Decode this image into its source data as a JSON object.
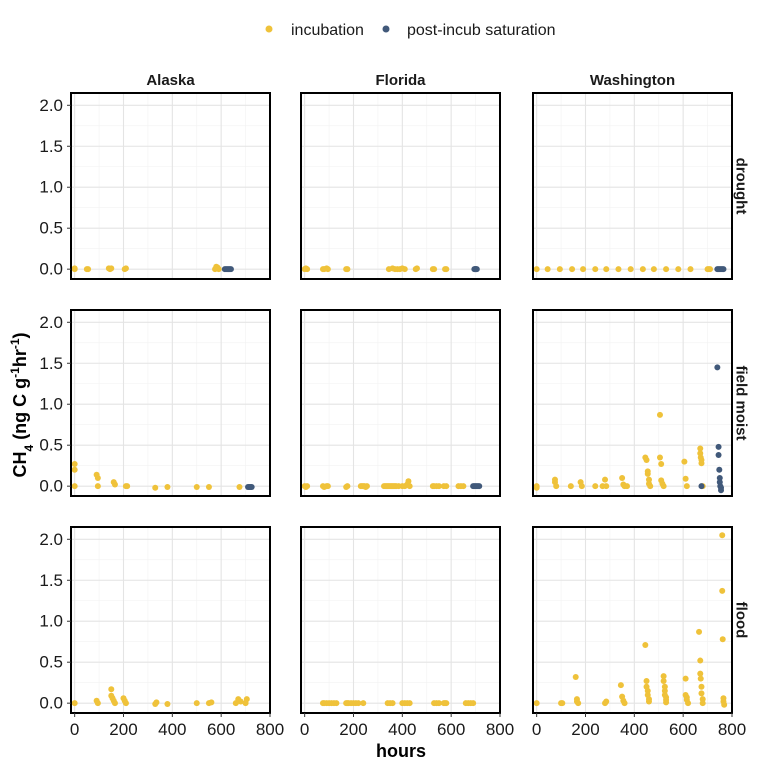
{
  "chart_data": {
    "type": "scatter",
    "xlabel": "hours",
    "ylabel": "CH4 (ng C g-1 hr-1)",
    "xlim": [
      -15,
      800
    ],
    "ylim": [
      -0.12,
      2.15
    ],
    "x_ticks": [
      0,
      200,
      400,
      600,
      800
    ],
    "x_tick_labels": [
      "0",
      "200",
      "400",
      "600",
      "800"
    ],
    "y_ticks": [
      0.0,
      0.5,
      1.0,
      1.5,
      2.0
    ],
    "y_tick_labels": [
      "0.0",
      "0.5",
      "1.0",
      "1.5",
      "2.0"
    ],
    "grid": true,
    "legend_position": "top",
    "columns": [
      "Alaska",
      "Florida",
      "Washington"
    ],
    "rows": [
      "drought",
      "field moist",
      "flood"
    ],
    "series": [
      {
        "name": "incubation",
        "color": "#EFC23A"
      },
      {
        "name": "post-incub saturation",
        "color": "#41597A"
      }
    ],
    "panels": [
      {
        "column": "Alaska",
        "row": "drought",
        "incubation": [
          [
            0,
            0.0
          ],
          [
            0,
            0.01
          ],
          [
            50,
            0.0
          ],
          [
            55,
            0.0
          ],
          [
            140,
            0.01
          ],
          [
            145,
            0.0
          ],
          [
            150,
            0.01
          ],
          [
            205,
            0.0
          ],
          [
            210,
            0.01
          ],
          [
            575,
            0.0
          ],
          [
            580,
            0.03
          ],
          [
            585,
            0.02
          ],
          [
            590,
            0.0
          ]
        ],
        "post_incub_saturation": [
          [
            615,
            0.0
          ],
          [
            620,
            0.0
          ],
          [
            625,
            0.0
          ],
          [
            630,
            0.0
          ],
          [
            635,
            0.0
          ],
          [
            640,
            0.0
          ]
        ]
      },
      {
        "column": "Florida",
        "row": "drought",
        "incubation": [
          [
            0,
            0.0
          ],
          [
            5,
            0.01
          ],
          [
            10,
            0.0
          ],
          [
            75,
            0.0
          ],
          [
            80,
            0.0
          ],
          [
            90,
            0.01
          ],
          [
            95,
            0.0
          ],
          [
            170,
            0.0
          ],
          [
            175,
            0.0
          ],
          [
            345,
            0.0
          ],
          [
            360,
            0.01
          ],
          [
            370,
            0.0
          ],
          [
            380,
            0.0
          ],
          [
            390,
            0.0
          ],
          [
            400,
            0.01
          ],
          [
            410,
            0.0
          ],
          [
            455,
            0.0
          ],
          [
            460,
            0.01
          ],
          [
            525,
            0.0
          ],
          [
            530,
            0.0
          ],
          [
            575,
            0.0
          ],
          [
            580,
            0.0
          ]
        ],
        "post_incub_saturation": [
          [
            695,
            0.0
          ],
          [
            698,
            0.0
          ],
          [
            700,
            0.0
          ],
          [
            702,
            0.0
          ],
          [
            705,
            0.0
          ]
        ]
      },
      {
        "column": "Washington",
        "row": "drought",
        "incubation": [
          [
            0,
            0.0
          ],
          [
            45,
            0.0
          ],
          [
            95,
            0.0
          ],
          [
            145,
            0.0
          ],
          [
            190,
            0.0
          ],
          [
            240,
            0.0
          ],
          [
            285,
            0.0
          ],
          [
            335,
            0.0
          ],
          [
            385,
            0.0
          ],
          [
            435,
            0.0
          ],
          [
            480,
            0.0
          ],
          [
            530,
            0.0
          ],
          [
            580,
            0.0
          ],
          [
            630,
            0.0
          ],
          [
            700,
            0.0
          ],
          [
            705,
            0.0
          ],
          [
            710,
            0.0
          ]
        ],
        "post_incub_saturation": [
          [
            740,
            0.0
          ],
          [
            745,
            0.0
          ],
          [
            750,
            0.0
          ],
          [
            755,
            0.0
          ],
          [
            760,
            0.0
          ],
          [
            765,
            0.0
          ]
        ]
      },
      {
        "column": "Alaska",
        "row": "field moist",
        "incubation": [
          [
            0,
            0.27
          ],
          [
            0,
            0.2
          ],
          [
            0,
            0.0
          ],
          [
            90,
            0.14
          ],
          [
            95,
            0.1
          ],
          [
            95,
            0.0
          ],
          [
            160,
            0.05
          ],
          [
            165,
            0.02
          ],
          [
            210,
            0.0
          ],
          [
            215,
            0.0
          ],
          [
            330,
            -0.02
          ],
          [
            380,
            -0.01
          ],
          [
            500,
            -0.01
          ],
          [
            550,
            -0.01
          ],
          [
            675,
            -0.01
          ]
        ],
        "post_incub_saturation": [
          [
            710,
            -0.01
          ],
          [
            715,
            -0.01
          ],
          [
            720,
            -0.01
          ],
          [
            725,
            -0.01
          ]
        ]
      },
      {
        "column": "Florida",
        "row": "field moist",
        "incubation": [
          [
            0,
            0.0
          ],
          [
            5,
            -0.01
          ],
          [
            10,
            0.0
          ],
          [
            75,
            0.0
          ],
          [
            80,
            -0.01
          ],
          [
            90,
            0.0
          ],
          [
            95,
            0.0
          ],
          [
            170,
            -0.01
          ],
          [
            175,
            0.0
          ],
          [
            230,
            0.0
          ],
          [
            235,
            0.0
          ],
          [
            240,
            0.0
          ],
          [
            245,
            0.0
          ],
          [
            250,
            -0.01
          ],
          [
            255,
            0.0
          ],
          [
            325,
            0.0
          ],
          [
            330,
            0.0
          ],
          [
            335,
            0.0
          ],
          [
            340,
            0.0
          ],
          [
            345,
            0.0
          ],
          [
            350,
            0.0
          ],
          [
            355,
            0.0
          ],
          [
            360,
            0.0
          ],
          [
            365,
            0.0
          ],
          [
            370,
            0.0
          ],
          [
            375,
            0.0
          ],
          [
            385,
            0.0
          ],
          [
            400,
            0.0
          ],
          [
            410,
            0.0
          ],
          [
            420,
            0.02
          ],
          [
            425,
            0.06
          ],
          [
            430,
            0.0
          ],
          [
            525,
            0.0
          ],
          [
            530,
            0.0
          ],
          [
            540,
            0.0
          ],
          [
            550,
            0.0
          ],
          [
            570,
            0.0
          ],
          [
            580,
            0.0
          ],
          [
            630,
            0.0
          ],
          [
            640,
            0.0
          ],
          [
            650,
            0.0
          ]
        ],
        "post_incub_saturation": [
          [
            690,
            0.0
          ],
          [
            695,
            0.0
          ],
          [
            700,
            0.0
          ],
          [
            705,
            0.0
          ],
          [
            710,
            0.0
          ],
          [
            715,
            0.0
          ]
        ]
      },
      {
        "column": "Washington",
        "row": "field moist",
        "incubation": [
          [
            0,
            0.0
          ],
          [
            0,
            -0.02
          ],
          [
            75,
            0.08
          ],
          [
            75,
            0.05
          ],
          [
            80,
            0.0
          ],
          [
            140,
            0.0
          ],
          [
            180,
            0.05
          ],
          [
            185,
            0.0
          ],
          [
            240,
            0.0
          ],
          [
            270,
            0.0
          ],
          [
            280,
            0.08
          ],
          [
            285,
            0.0
          ],
          [
            350,
            0.1
          ],
          [
            355,
            0.02
          ],
          [
            360,
            0.0
          ],
          [
            370,
            0.0
          ],
          [
            445,
            0.35
          ],
          [
            450,
            0.32
          ],
          [
            455,
            0.18
          ],
          [
            455,
            0.15
          ],
          [
            460,
            0.08
          ],
          [
            460,
            0.03
          ],
          [
            465,
            0.0
          ],
          [
            505,
            0.87
          ],
          [
            505,
            0.35
          ],
          [
            510,
            0.27
          ],
          [
            510,
            0.07
          ],
          [
            515,
            0.03
          ],
          [
            520,
            0.0
          ],
          [
            605,
            0.3
          ],
          [
            610,
            0.09
          ],
          [
            615,
            0.0
          ],
          [
            670,
            0.46
          ],
          [
            670,
            0.4
          ],
          [
            672,
            0.35
          ],
          [
            675,
            0.32
          ],
          [
            675,
            0.28
          ],
          [
            680,
            0.0
          ]
        ],
        "post_incub_saturation": [
          [
            675,
            0.0
          ],
          [
            740,
            1.45
          ],
          [
            745,
            0.48
          ],
          [
            745,
            0.38
          ],
          [
            748,
            0.2
          ],
          [
            750,
            0.1
          ],
          [
            750,
            0.05
          ],
          [
            752,
            0.0
          ],
          [
            755,
            -0.02
          ],
          [
            755,
            -0.05
          ]
        ]
      },
      {
        "column": "Alaska",
        "row": "flood",
        "incubation": [
          [
            0,
            0.0
          ],
          [
            90,
            0.03
          ],
          [
            95,
            0.0
          ],
          [
            150,
            0.17
          ],
          [
            150,
            0.09
          ],
          [
            155,
            0.06
          ],
          [
            160,
            0.03
          ],
          [
            165,
            0.0
          ],
          [
            200,
            0.06
          ],
          [
            205,
            0.03
          ],
          [
            210,
            0.0
          ],
          [
            330,
            -0.01
          ],
          [
            335,
            0.01
          ],
          [
            380,
            -0.01
          ],
          [
            500,
            0.0
          ],
          [
            550,
            0.0
          ],
          [
            560,
            0.01
          ],
          [
            660,
            0.0
          ],
          [
            670,
            0.05
          ],
          [
            680,
            0.02
          ],
          [
            700,
            0.0
          ],
          [
            705,
            0.05
          ]
        ],
        "post_incub_saturation": []
      },
      {
        "column": "Florida",
        "row": "flood",
        "incubation": [
          [
            75,
            0.0
          ],
          [
            80,
            0.0
          ],
          [
            90,
            0.0
          ],
          [
            100,
            0.0
          ],
          [
            110,
            0.0
          ],
          [
            120,
            0.0
          ],
          [
            130,
            0.0
          ],
          [
            170,
            0.0
          ],
          [
            175,
            0.0
          ],
          [
            180,
            0.0
          ],
          [
            190,
            0.0
          ],
          [
            200,
            0.0
          ],
          [
            210,
            0.0
          ],
          [
            220,
            0.0
          ],
          [
            240,
            0.0
          ],
          [
            340,
            0.0
          ],
          [
            350,
            0.0
          ],
          [
            360,
            0.0
          ],
          [
            400,
            0.0
          ],
          [
            410,
            0.0
          ],
          [
            420,
            0.0
          ],
          [
            430,
            0.0
          ],
          [
            530,
            0.0
          ],
          [
            540,
            0.0
          ],
          [
            550,
            0.0
          ],
          [
            570,
            0.0
          ],
          [
            575,
            0.0
          ],
          [
            580,
            0.0
          ],
          [
            660,
            0.0
          ],
          [
            670,
            0.0
          ],
          [
            680,
            0.0
          ],
          [
            690,
            0.0
          ]
        ],
        "post_incub_saturation": []
      },
      {
        "column": "Washington",
        "row": "flood",
        "incubation": [
          [
            0,
            0.0
          ],
          [
            100,
            0.0
          ],
          [
            105,
            0.0
          ],
          [
            160,
            0.32
          ],
          [
            165,
            0.05
          ],
          [
            165,
            0.02
          ],
          [
            170,
            0.0
          ],
          [
            280,
            0.0
          ],
          [
            285,
            0.02
          ],
          [
            345,
            0.22
          ],
          [
            350,
            0.08
          ],
          [
            355,
            0.03
          ],
          [
            360,
            0.0
          ],
          [
            445,
            0.71
          ],
          [
            450,
            0.27
          ],
          [
            450,
            0.2
          ],
          [
            455,
            0.15
          ],
          [
            455,
            0.1
          ],
          [
            460,
            0.05
          ],
          [
            460,
            0.02
          ],
          [
            520,
            0.33
          ],
          [
            520,
            0.27
          ],
          [
            525,
            0.2
          ],
          [
            525,
            0.15
          ],
          [
            525,
            0.1
          ],
          [
            530,
            0.07
          ],
          [
            530,
            0.04
          ],
          [
            530,
            0.01
          ],
          [
            610,
            0.3
          ],
          [
            610,
            0.1
          ],
          [
            615,
            0.07
          ],
          [
            615,
            0.04
          ],
          [
            620,
            0.0
          ],
          [
            665,
            0.87
          ],
          [
            670,
            0.52
          ],
          [
            670,
            0.36
          ],
          [
            672,
            0.3
          ],
          [
            675,
            0.2
          ],
          [
            675,
            0.12
          ],
          [
            680,
            0.05
          ],
          [
            680,
            0.0
          ],
          [
            760,
            2.05
          ],
          [
            760,
            1.37
          ],
          [
            762,
            0.78
          ],
          [
            765,
            0.06
          ],
          [
            765,
            0.02
          ],
          [
            768,
            -0.02
          ]
        ],
        "post_incub_saturation": []
      }
    ]
  }
}
